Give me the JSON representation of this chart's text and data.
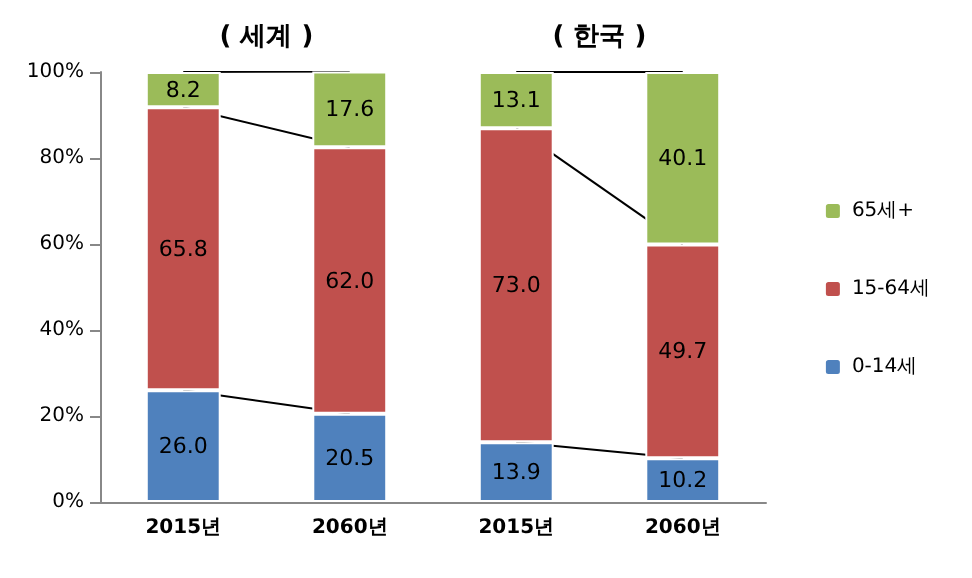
{
  "chart_data": {
    "type": "bar",
    "stacked": true,
    "categories": [
      "2015년",
      "2060년",
      "2015년",
      "2060년"
    ],
    "series": [
      {
        "name": "0-14세",
        "color": "#4f81bd",
        "values": [
          26.0,
          20.5,
          13.9,
          10.2
        ],
        "value_labels": [
          "26.0",
          "20.5",
          "13.9",
          "10.2"
        ]
      },
      {
        "name": "15-64세",
        "color": "#c0504d",
        "values": [
          65.8,
          62.0,
          73.0,
          49.7
        ],
        "value_labels": [
          "65.8",
          "62.0",
          "73.0",
          "49.7"
        ]
      },
      {
        "name": "65세+",
        "color": "#9bbb59",
        "values": [
          8.2,
          17.6,
          13.1,
          40.1
        ],
        "value_labels": [
          "8.2",
          "17.6",
          "13.1",
          "40.1"
        ]
      }
    ],
    "ylim": [
      0,
      100
    ],
    "yticks": [
      {
        "value": 0,
        "label": "0%"
      },
      {
        "value": 20,
        "label": "20%"
      },
      {
        "value": 40,
        "label": "40%"
      },
      {
        "value": 60,
        "label": "60%"
      },
      {
        "value": 80,
        "label": "80%"
      },
      {
        "value": 100,
        "label": "100%"
      }
    ],
    "annotations": [
      "( 세계 )",
      "( 한국 )"
    ],
    "legend": "right",
    "grid": false
  }
}
